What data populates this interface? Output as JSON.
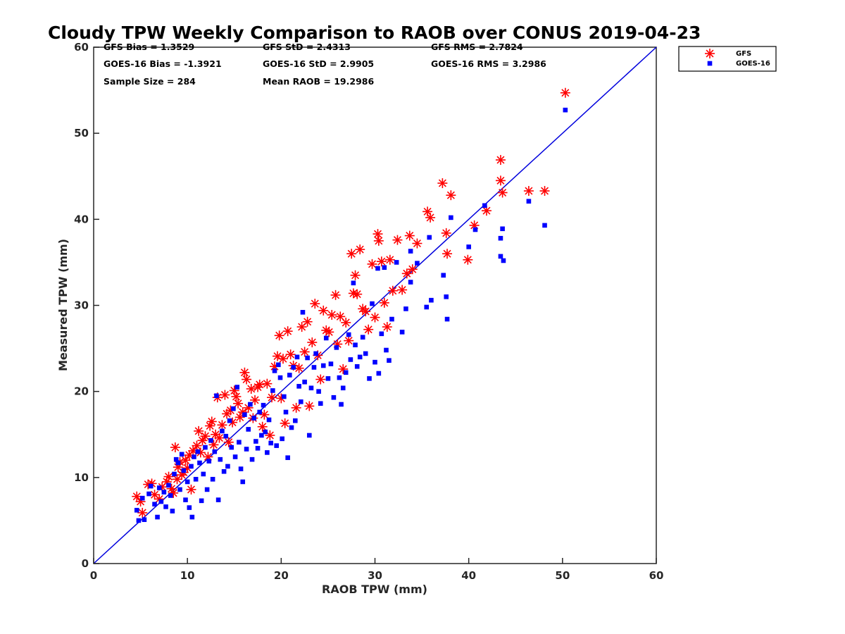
{
  "chart_data": {
    "type": "scatter",
    "title": "Cloudy TPW Weekly Comparison to RAOB over CONUS 2019-04-23",
    "xlabel": "RAOB TPW (mm)",
    "ylabel": "Measured TPW (mm)",
    "xlim": [
      0,
      60
    ],
    "ylim": [
      0,
      60
    ],
    "xticks": [
      0,
      10,
      20,
      30,
      40,
      50,
      60
    ],
    "yticks": [
      0,
      10,
      20,
      30,
      40,
      50,
      60
    ],
    "grid": false,
    "legend_position": "outside-top-right",
    "reference_line": {
      "name": "1:1 line",
      "from": [
        0,
        0
      ],
      "to": [
        60,
        60
      ],
      "color": "#0000dd"
    },
    "stats": [
      {
        "text": "GFS Bias = 1.3529"
      },
      {
        "text": "GFS StD = 2.4313"
      },
      {
        "text": "GFS RMS = 2.7824"
      },
      {
        "text": "GOES-16 Bias = -1.3921"
      },
      {
        "text": "GOES-16 StD = 2.9905"
      },
      {
        "text": "GOES-16 RMS = 3.2986"
      },
      {
        "text": "Sample Size = 284"
      },
      {
        "text": "Mean RAOB = 19.2986"
      }
    ],
    "series": [
      {
        "name": "GFS",
        "marker": "asterisk",
        "color": "#ff0000",
        "points": [
          [
            4.6,
            7.8
          ],
          [
            5.0,
            7.2
          ],
          [
            5.2,
            5.9
          ],
          [
            5.8,
            9.2
          ],
          [
            6.2,
            9.3
          ],
          [
            6.5,
            8.0
          ],
          [
            7.0,
            7.5
          ],
          [
            7.3,
            8.9
          ],
          [
            7.8,
            9.5
          ],
          [
            8.0,
            10.1
          ],
          [
            8.3,
            8.7
          ],
          [
            8.5,
            8.2
          ],
          [
            8.7,
            13.5
          ],
          [
            8.9,
            9.8
          ],
          [
            9.0,
            11.2
          ],
          [
            9.2,
            11.8
          ],
          [
            9.4,
            10.3
          ],
          [
            9.6,
            10.6
          ],
          [
            9.8,
            12.0
          ],
          [
            10.0,
            11.1
          ],
          [
            10.2,
            12.6
          ],
          [
            10.4,
            8.6
          ],
          [
            10.6,
            13.1
          ],
          [
            11.0,
            13.7
          ],
          [
            11.2,
            15.4
          ],
          [
            11.4,
            12.9
          ],
          [
            11.6,
            14.3
          ],
          [
            11.9,
            14.8
          ],
          [
            12.2,
            12.4
          ],
          [
            12.4,
            16.0
          ],
          [
            12.6,
            16.5
          ],
          [
            12.8,
            13.8
          ],
          [
            13.0,
            15.0
          ],
          [
            13.2,
            19.3
          ],
          [
            13.4,
            14.6
          ],
          [
            13.7,
            16.1
          ],
          [
            14.0,
            19.6
          ],
          [
            14.2,
            17.4
          ],
          [
            14.4,
            14.1
          ],
          [
            14.6,
            17.8
          ],
          [
            14.8,
            16.4
          ],
          [
            15.0,
            20.1
          ],
          [
            15.2,
            19.4
          ],
          [
            15.4,
            18.6
          ],
          [
            15.6,
            17.0
          ],
          [
            15.9,
            17.6
          ],
          [
            16.1,
            22.2
          ],
          [
            16.3,
            21.4
          ],
          [
            16.5,
            18.1
          ],
          [
            16.8,
            20.3
          ],
          [
            17.0,
            16.9
          ],
          [
            17.2,
            19.0
          ],
          [
            17.5,
            20.5
          ],
          [
            17.7,
            20.8
          ],
          [
            18.0,
            15.9
          ],
          [
            18.2,
            17.3
          ],
          [
            18.5,
            20.9
          ],
          [
            18.8,
            14.9
          ],
          [
            19.0,
            19.3
          ],
          [
            19.3,
            22.9
          ],
          [
            19.6,
            24.1
          ],
          [
            19.8,
            26.5
          ],
          [
            20.0,
            19.2
          ],
          [
            20.2,
            23.8
          ],
          [
            20.4,
            16.3
          ],
          [
            20.7,
            27.0
          ],
          [
            21.0,
            24.3
          ],
          [
            21.3,
            23.0
          ],
          [
            21.6,
            18.1
          ],
          [
            21.9,
            22.7
          ],
          [
            22.2,
            27.5
          ],
          [
            22.5,
            24.6
          ],
          [
            22.8,
            28.1
          ],
          [
            23.0,
            18.3
          ],
          [
            23.3,
            25.7
          ],
          [
            23.6,
            30.2
          ],
          [
            23.9,
            24.2
          ],
          [
            24.2,
            21.4
          ],
          [
            24.5,
            29.4
          ],
          [
            24.8,
            27.1
          ],
          [
            25.1,
            26.9
          ],
          [
            25.4,
            28.9
          ],
          [
            25.8,
            31.2
          ],
          [
            26.0,
            25.5
          ],
          [
            26.3,
            28.7
          ],
          [
            26.6,
            22.6
          ],
          [
            26.9,
            28.0
          ],
          [
            27.2,
            25.9
          ],
          [
            27.5,
            36.0
          ],
          [
            27.7,
            31.4
          ],
          [
            27.9,
            33.5
          ],
          [
            28.1,
            31.3
          ],
          [
            28.4,
            36.5
          ],
          [
            28.7,
            29.6
          ],
          [
            29.0,
            29.3
          ],
          [
            29.3,
            27.2
          ],
          [
            29.7,
            34.8
          ],
          [
            30.0,
            28.6
          ],
          [
            30.3,
            38.3
          ],
          [
            30.4,
            37.5
          ],
          [
            30.7,
            35.1
          ],
          [
            31.0,
            30.3
          ],
          [
            31.3,
            27.5
          ],
          [
            31.6,
            35.3
          ],
          [
            31.9,
            31.7
          ],
          [
            32.4,
            37.6
          ],
          [
            32.9,
            31.8
          ],
          [
            33.4,
            33.7
          ],
          [
            33.7,
            38.1
          ],
          [
            34.0,
            34.2
          ],
          [
            34.5,
            37.2
          ],
          [
            35.6,
            40.9
          ],
          [
            35.9,
            40.2
          ],
          [
            37.2,
            44.2
          ],
          [
            37.6,
            38.4
          ],
          [
            37.7,
            36.0
          ],
          [
            38.1,
            42.8
          ],
          [
            39.9,
            35.3
          ],
          [
            40.6,
            39.3
          ],
          [
            41.9,
            41.0
          ],
          [
            43.4,
            46.9
          ],
          [
            43.4,
            44.5
          ],
          [
            43.6,
            43.1
          ],
          [
            46.4,
            43.3
          ],
          [
            48.1,
            43.3
          ],
          [
            50.3,
            54.7
          ]
        ]
      },
      {
        "name": "GOES-16",
        "marker": "square",
        "color": "#0000ff",
        "points": [
          [
            4.6,
            6.2
          ],
          [
            4.8,
            5.0
          ],
          [
            5.2,
            7.6
          ],
          [
            5.4,
            5.1
          ],
          [
            5.9,
            8.1
          ],
          [
            6.1,
            9.0
          ],
          [
            6.5,
            6.9
          ],
          [
            6.8,
            5.4
          ],
          [
            7.0,
            8.8
          ],
          [
            7.2,
            7.2
          ],
          [
            7.5,
            8.3
          ],
          [
            7.7,
            6.6
          ],
          [
            8.0,
            9.1
          ],
          [
            8.2,
            7.9
          ],
          [
            8.4,
            6.1
          ],
          [
            8.6,
            10.4
          ],
          [
            8.8,
            12.1
          ],
          [
            9.0,
            11.7
          ],
          [
            9.2,
            8.6
          ],
          [
            9.4,
            12.7
          ],
          [
            9.6,
            10.8
          ],
          [
            9.8,
            7.4
          ],
          [
            10.0,
            9.5
          ],
          [
            10.2,
            6.5
          ],
          [
            10.4,
            11.3
          ],
          [
            10.5,
            5.4
          ],
          [
            10.7,
            12.4
          ],
          [
            10.9,
            9.8
          ],
          [
            11.1,
            13.0
          ],
          [
            11.3,
            11.7
          ],
          [
            11.5,
            7.3
          ],
          [
            11.7,
            10.4
          ],
          [
            11.9,
            13.5
          ],
          [
            12.1,
            8.6
          ],
          [
            12.3,
            11.9
          ],
          [
            12.5,
            14.3
          ],
          [
            12.7,
            9.8
          ],
          [
            12.9,
            13.0
          ],
          [
            13.1,
            19.5
          ],
          [
            13.3,
            7.4
          ],
          [
            13.5,
            12.1
          ],
          [
            13.7,
            15.4
          ],
          [
            13.9,
            10.7
          ],
          [
            14.1,
            14.8
          ],
          [
            14.3,
            11.3
          ],
          [
            14.5,
            16.6
          ],
          [
            14.7,
            13.5
          ],
          [
            14.9,
            18.0
          ],
          [
            15.1,
            12.4
          ],
          [
            15.3,
            20.5
          ],
          [
            15.5,
            14.1
          ],
          [
            15.7,
            11.0
          ],
          [
            15.9,
            9.5
          ],
          [
            16.1,
            17.3
          ],
          [
            16.3,
            13.3
          ],
          [
            16.5,
            15.6
          ],
          [
            16.7,
            18.5
          ],
          [
            16.9,
            12.1
          ],
          [
            17.1,
            16.9
          ],
          [
            17.3,
            14.2
          ],
          [
            17.5,
            13.4
          ],
          [
            17.7,
            17.6
          ],
          [
            17.9,
            14.9
          ],
          [
            18.1,
            18.4
          ],
          [
            18.3,
            15.3
          ],
          [
            18.5,
            12.9
          ],
          [
            18.7,
            16.7
          ],
          [
            18.9,
            14.0
          ],
          [
            19.1,
            20.1
          ],
          [
            19.3,
            22.4
          ],
          [
            19.5,
            13.7
          ],
          [
            19.7,
            23.1
          ],
          [
            19.9,
            21.6
          ],
          [
            20.1,
            14.5
          ],
          [
            20.3,
            19.4
          ],
          [
            20.5,
            17.6
          ],
          [
            20.7,
            12.3
          ],
          [
            20.9,
            21.9
          ],
          [
            21.1,
            15.8
          ],
          [
            21.3,
            22.8
          ],
          [
            21.5,
            16.6
          ],
          [
            21.7,
            24.0
          ],
          [
            21.9,
            20.6
          ],
          [
            22.1,
            18.8
          ],
          [
            22.3,
            29.2
          ],
          [
            22.5,
            21.1
          ],
          [
            22.8,
            23.9
          ],
          [
            23.0,
            14.9
          ],
          [
            23.2,
            20.4
          ],
          [
            23.5,
            22.8
          ],
          [
            23.7,
            24.4
          ],
          [
            24.0,
            20.0
          ],
          [
            24.2,
            18.6
          ],
          [
            24.5,
            23.0
          ],
          [
            24.8,
            26.2
          ],
          [
            25.0,
            21.5
          ],
          [
            25.3,
            23.2
          ],
          [
            25.6,
            19.3
          ],
          [
            25.9,
            25.1
          ],
          [
            26.2,
            21.6
          ],
          [
            26.4,
            18.5
          ],
          [
            26.6,
            20.4
          ],
          [
            26.9,
            22.2
          ],
          [
            27.2,
            26.6
          ],
          [
            27.4,
            23.7
          ],
          [
            27.7,
            32.6
          ],
          [
            27.9,
            25.4
          ],
          [
            28.1,
            22.9
          ],
          [
            28.4,
            24.0
          ],
          [
            28.7,
            26.3
          ],
          [
            29.0,
            24.4
          ],
          [
            29.4,
            21.5
          ],
          [
            29.7,
            30.2
          ],
          [
            30.0,
            23.4
          ],
          [
            30.3,
            34.3
          ],
          [
            30.4,
            22.1
          ],
          [
            30.7,
            26.7
          ],
          [
            31.0,
            34.4
          ],
          [
            31.2,
            24.8
          ],
          [
            31.5,
            23.6
          ],
          [
            31.8,
            28.4
          ],
          [
            32.3,
            35.0
          ],
          [
            32.9,
            26.9
          ],
          [
            33.3,
            29.6
          ],
          [
            33.8,
            32.7
          ],
          [
            33.8,
            36.3
          ],
          [
            34.5,
            34.9
          ],
          [
            35.5,
            29.8
          ],
          [
            35.8,
            37.9
          ],
          [
            36.0,
            30.6
          ],
          [
            37.3,
            33.5
          ],
          [
            37.6,
            31.0
          ],
          [
            37.7,
            28.4
          ],
          [
            38.1,
            40.2
          ],
          [
            40.0,
            36.8
          ],
          [
            40.7,
            38.8
          ],
          [
            41.7,
            41.6
          ],
          [
            43.4,
            37.8
          ],
          [
            43.4,
            35.7
          ],
          [
            43.6,
            38.9
          ],
          [
            43.7,
            35.2
          ],
          [
            46.4,
            42.1
          ],
          [
            48.1,
            39.3
          ],
          [
            50.3,
            52.7
          ]
        ]
      }
    ]
  }
}
